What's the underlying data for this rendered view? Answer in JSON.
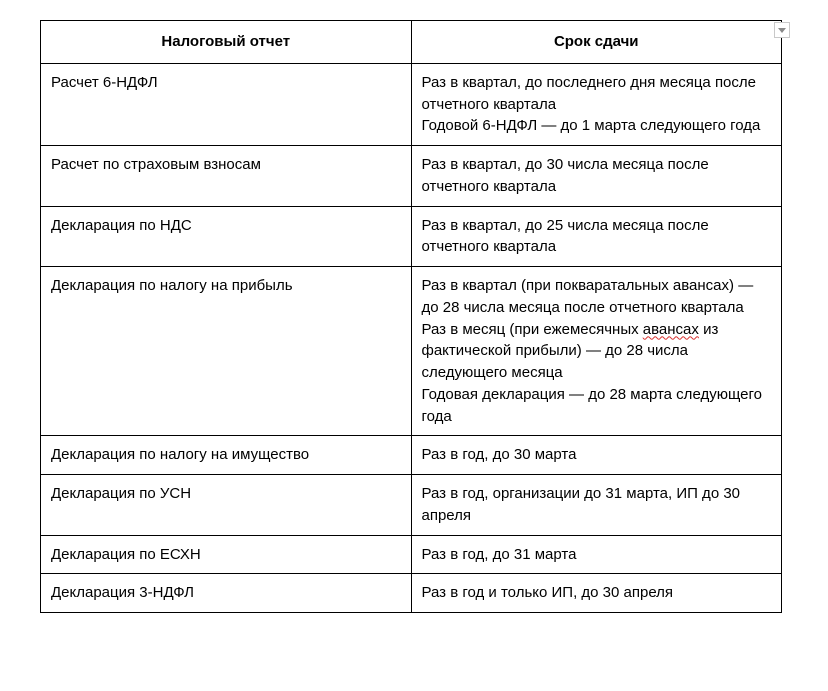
{
  "table": {
    "type": "table",
    "header_fontweight": 700,
    "cell_fontsize": 15,
    "border_color": "#000000",
    "columns": [
      {
        "label": "Налоговый отчет",
        "width_pct": 50,
        "align": "center"
      },
      {
        "label": "Срок сдачи",
        "width_pct": 50,
        "align": "center"
      }
    ],
    "rows": [
      {
        "report": "Расчет 6-НДФЛ",
        "deadline": "Раз в квартал, до последнего дня месяца после отчетного квартала\nГодовой 6-НДФЛ — до 1 марта следующего года"
      },
      {
        "report": "Расчет по страховым взносам",
        "deadline": "Раз в квартал, до 30 числа месяца после отчетного квартала"
      },
      {
        "report": "Декларация по НДС",
        "deadline": "Раз в квартал, до 25 числа месяца после отчетного квартала"
      },
      {
        "report": "Декларация по налогу на прибыль",
        "deadline_parts": {
          "p1": "Раз в квартал (при покваратальных авансах) — до 28 числа месяца после отчетного квартала\nРаз в месяц (при ежемесячных ",
          "sp": "авансах",
          "p2": " из фактической прибыли) — до 28 числа следующего месяца\nГодовая декларация — до 28 марта следующего года"
        }
      },
      {
        "report": "Декларация по налогу на имущество",
        "deadline": "Раз в год, до 30 марта"
      },
      {
        "report": "Декларация по УСН",
        "deadline": "Раз в год, организации до 31 марта, ИП до 30 апреля"
      },
      {
        "report": "Декларация по ЕСХН",
        "deadline": "Раз в год, до 31 марта"
      },
      {
        "report": "Декларация 3-НДФЛ",
        "deadline": "Раз в год и только ИП, до 30 апреля"
      }
    ]
  },
  "spellcheck_wave_color": "#d9302e",
  "dropdown_handle": {
    "border_color": "#c9c9c9",
    "arrow_color": "#8a8a8a"
  }
}
